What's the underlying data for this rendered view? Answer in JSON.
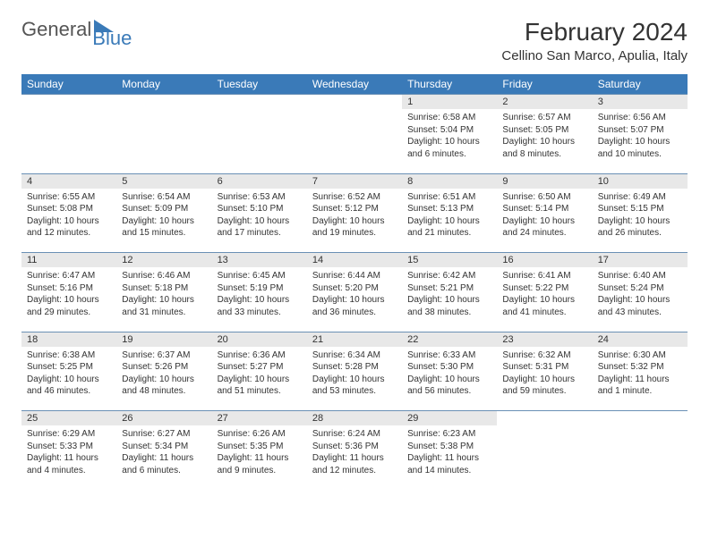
{
  "logo": {
    "general": "General",
    "blue": "Blue"
  },
  "title": "February 2024",
  "location": "Cellino San Marco, Apulia, Italy",
  "colors": {
    "header_bg": "#3a7ab8",
    "header_fg": "#ffffff",
    "daynum_bg": "#e8e8e8",
    "row_border": "#6a90b5"
  },
  "weekdays": [
    "Sunday",
    "Monday",
    "Tuesday",
    "Wednesday",
    "Thursday",
    "Friday",
    "Saturday"
  ],
  "first_weekday_index": 4,
  "days": [
    {
      "n": 1,
      "sunrise": "6:58 AM",
      "sunset": "5:04 PM",
      "daylight": "10 hours and 6 minutes."
    },
    {
      "n": 2,
      "sunrise": "6:57 AM",
      "sunset": "5:05 PM",
      "daylight": "10 hours and 8 minutes."
    },
    {
      "n": 3,
      "sunrise": "6:56 AM",
      "sunset": "5:07 PM",
      "daylight": "10 hours and 10 minutes."
    },
    {
      "n": 4,
      "sunrise": "6:55 AM",
      "sunset": "5:08 PM",
      "daylight": "10 hours and 12 minutes."
    },
    {
      "n": 5,
      "sunrise": "6:54 AM",
      "sunset": "5:09 PM",
      "daylight": "10 hours and 15 minutes."
    },
    {
      "n": 6,
      "sunrise": "6:53 AM",
      "sunset": "5:10 PM",
      "daylight": "10 hours and 17 minutes."
    },
    {
      "n": 7,
      "sunrise": "6:52 AM",
      "sunset": "5:12 PM",
      "daylight": "10 hours and 19 minutes."
    },
    {
      "n": 8,
      "sunrise": "6:51 AM",
      "sunset": "5:13 PM",
      "daylight": "10 hours and 21 minutes."
    },
    {
      "n": 9,
      "sunrise": "6:50 AM",
      "sunset": "5:14 PM",
      "daylight": "10 hours and 24 minutes."
    },
    {
      "n": 10,
      "sunrise": "6:49 AM",
      "sunset": "5:15 PM",
      "daylight": "10 hours and 26 minutes."
    },
    {
      "n": 11,
      "sunrise": "6:47 AM",
      "sunset": "5:16 PM",
      "daylight": "10 hours and 29 minutes."
    },
    {
      "n": 12,
      "sunrise": "6:46 AM",
      "sunset": "5:18 PM",
      "daylight": "10 hours and 31 minutes."
    },
    {
      "n": 13,
      "sunrise": "6:45 AM",
      "sunset": "5:19 PM",
      "daylight": "10 hours and 33 minutes."
    },
    {
      "n": 14,
      "sunrise": "6:44 AM",
      "sunset": "5:20 PM",
      "daylight": "10 hours and 36 minutes."
    },
    {
      "n": 15,
      "sunrise": "6:42 AM",
      "sunset": "5:21 PM",
      "daylight": "10 hours and 38 minutes."
    },
    {
      "n": 16,
      "sunrise": "6:41 AM",
      "sunset": "5:22 PM",
      "daylight": "10 hours and 41 minutes."
    },
    {
      "n": 17,
      "sunrise": "6:40 AM",
      "sunset": "5:24 PM",
      "daylight": "10 hours and 43 minutes."
    },
    {
      "n": 18,
      "sunrise": "6:38 AM",
      "sunset": "5:25 PM",
      "daylight": "10 hours and 46 minutes."
    },
    {
      "n": 19,
      "sunrise": "6:37 AM",
      "sunset": "5:26 PM",
      "daylight": "10 hours and 48 minutes."
    },
    {
      "n": 20,
      "sunrise": "6:36 AM",
      "sunset": "5:27 PM",
      "daylight": "10 hours and 51 minutes."
    },
    {
      "n": 21,
      "sunrise": "6:34 AM",
      "sunset": "5:28 PM",
      "daylight": "10 hours and 53 minutes."
    },
    {
      "n": 22,
      "sunrise": "6:33 AM",
      "sunset": "5:30 PM",
      "daylight": "10 hours and 56 minutes."
    },
    {
      "n": 23,
      "sunrise": "6:32 AM",
      "sunset": "5:31 PM",
      "daylight": "10 hours and 59 minutes."
    },
    {
      "n": 24,
      "sunrise": "6:30 AM",
      "sunset": "5:32 PM",
      "daylight": "11 hours and 1 minute."
    },
    {
      "n": 25,
      "sunrise": "6:29 AM",
      "sunset": "5:33 PM",
      "daylight": "11 hours and 4 minutes."
    },
    {
      "n": 26,
      "sunrise": "6:27 AM",
      "sunset": "5:34 PM",
      "daylight": "11 hours and 6 minutes."
    },
    {
      "n": 27,
      "sunrise": "6:26 AM",
      "sunset": "5:35 PM",
      "daylight": "11 hours and 9 minutes."
    },
    {
      "n": 28,
      "sunrise": "6:24 AM",
      "sunset": "5:36 PM",
      "daylight": "11 hours and 12 minutes."
    },
    {
      "n": 29,
      "sunrise": "6:23 AM",
      "sunset": "5:38 PM",
      "daylight": "11 hours and 14 minutes."
    }
  ],
  "labels": {
    "sunrise": "Sunrise:",
    "sunset": "Sunset:",
    "daylight": "Daylight:"
  }
}
